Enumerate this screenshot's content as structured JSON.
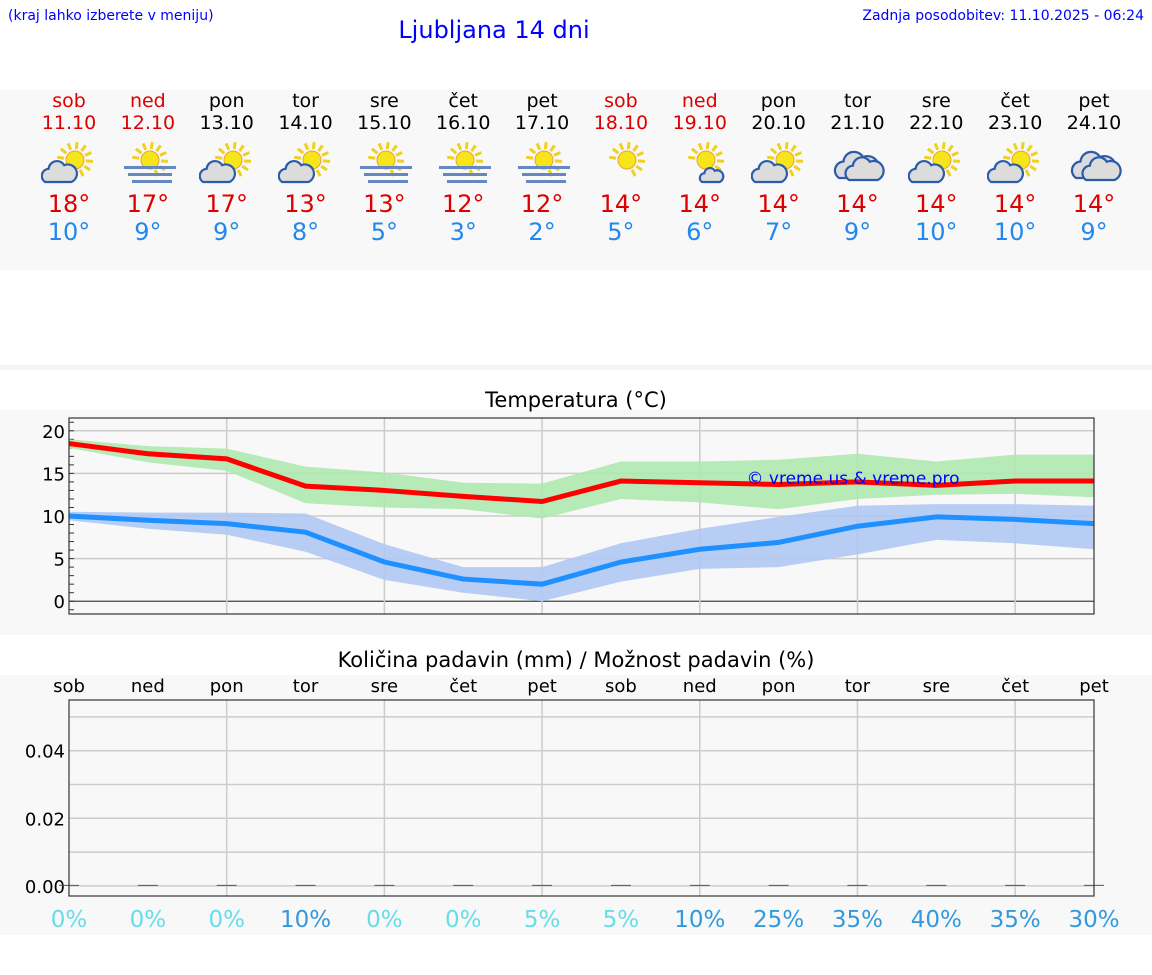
{
  "header": {
    "hint": "(kraj lahko izberete v meniju)",
    "title": "Ljubljana 14 dni",
    "updated": "Zadnja posodobitev: 11.10.2025 - 06:24"
  },
  "colors": {
    "weekend": "#dd0000",
    "max": "#ff0000",
    "min": "#1e90ff",
    "max_band": "#aee8ae",
    "min_band": "#b0c8f2",
    "prob_low": "#66dde8",
    "prob_high": "#3399dd"
  },
  "days": [
    {
      "name": "sob",
      "date": "11.10",
      "icon": "sun-cloud",
      "max": "18°",
      "min": "10°",
      "weekend": true
    },
    {
      "name": "ned",
      "date": "12.10",
      "icon": "sun-fog",
      "max": "17°",
      "min": "9°",
      "weekend": true
    },
    {
      "name": "pon",
      "date": "13.10",
      "icon": "sun-cloud",
      "max": "17°",
      "min": "9°"
    },
    {
      "name": "tor",
      "date": "14.10",
      "icon": "sun-cloud",
      "max": "13°",
      "min": "8°"
    },
    {
      "name": "sre",
      "date": "15.10",
      "icon": "sun-fog",
      "max": "13°",
      "min": "5°"
    },
    {
      "name": "čet",
      "date": "16.10",
      "icon": "sun-fog",
      "max": "12°",
      "min": "3°"
    },
    {
      "name": "pet",
      "date": "17.10",
      "icon": "sun-fog",
      "max": "12°",
      "min": "2°"
    },
    {
      "name": "sob",
      "date": "18.10",
      "icon": "sun",
      "max": "14°",
      "min": "5°",
      "weekend": true
    },
    {
      "name": "ned",
      "date": "19.10",
      "icon": "sun-small-cloud",
      "max": "14°",
      "min": "6°",
      "weekend": true
    },
    {
      "name": "pon",
      "date": "20.10",
      "icon": "sun-cloud",
      "max": "14°",
      "min": "7°"
    },
    {
      "name": "tor",
      "date": "21.10",
      "icon": "cloudy",
      "max": "14°",
      "min": "9°"
    },
    {
      "name": "sre",
      "date": "22.10",
      "icon": "sun-cloud",
      "max": "14°",
      "min": "10°"
    },
    {
      "name": "čet",
      "date": "23.10",
      "icon": "sun-cloud",
      "max": "14°",
      "min": "10°"
    },
    {
      "name": "pet",
      "date": "24.10",
      "icon": "cloudy",
      "max": "14°",
      "min": "9°"
    }
  ],
  "chart_data": [
    {
      "type": "line",
      "title": "Temperatura (°C)",
      "watermark": "© vreme.us & vreme.pro",
      "ylim": [
        -1.5,
        21.5
      ],
      "yticks": [
        0,
        5,
        10,
        15,
        20
      ],
      "grid": true,
      "x": [
        "11.10",
        "12.10",
        "13.10",
        "14.10",
        "15.10",
        "16.10",
        "17.10",
        "18.10",
        "19.10",
        "20.10",
        "21.10",
        "22.10",
        "23.10",
        "24.10"
      ],
      "series": [
        {
          "key": "max",
          "values": [
            18.5,
            17.3,
            16.7,
            13.5,
            13.0,
            12.3,
            11.7,
            14.1,
            13.9,
            13.7,
            14.0,
            13.6,
            14.1,
            14.1
          ],
          "band_upper": [
            19,
            18.2,
            17.9,
            15.8,
            15.1,
            13.9,
            13.8,
            16.4,
            16.4,
            16.6,
            17.3,
            16.4,
            17.2,
            17.2
          ],
          "band_lower": [
            18,
            16.3,
            15.3,
            11.5,
            11.0,
            10.8,
            9.7,
            12.0,
            11.6,
            10.8,
            12.0,
            12.5,
            12.6,
            12.2
          ]
        },
        {
          "key": "min",
          "values": [
            10,
            9.5,
            9.1,
            8.1,
            4.6,
            2.6,
            2.0,
            4.6,
            6.1,
            6.9,
            8.8,
            9.9,
            9.6,
            9.1
          ],
          "band_upper": [
            10.5,
            10.4,
            10.4,
            10.3,
            6.7,
            4.0,
            4.0,
            6.8,
            8.5,
            9.9,
            11.2,
            11.4,
            11.4,
            11.2
          ],
          "band_lower": [
            9.5,
            8.5,
            7.8,
            5.8,
            2.5,
            1.0,
            0,
            2.3,
            3.8,
            4.0,
            5.5,
            7.2,
            6.8,
            6.1
          ]
        }
      ]
    },
    {
      "type": "bar",
      "title": "Količina padavin (mm) / Možnost padavin (%)",
      "ylim": [
        -0.003,
        0.055
      ],
      "yticks": [
        "0.00",
        "0.02",
        "0.04"
      ],
      "grid": true,
      "categories": [
        "sob",
        "ned",
        "pon",
        "tor",
        "sre",
        "čet",
        "pet",
        "sob",
        "ned",
        "pon",
        "tor",
        "sre",
        "čet",
        "pet"
      ],
      "values": [
        0,
        0,
        0,
        0,
        0,
        0,
        0,
        0,
        0,
        0,
        0,
        0,
        0,
        0
      ],
      "probability": [
        "0%",
        "0%",
        "0%",
        "10%",
        "0%",
        "0%",
        "5%",
        "5%",
        "10%",
        "25%",
        "35%",
        "40%",
        "35%",
        "30%"
      ]
    }
  ]
}
